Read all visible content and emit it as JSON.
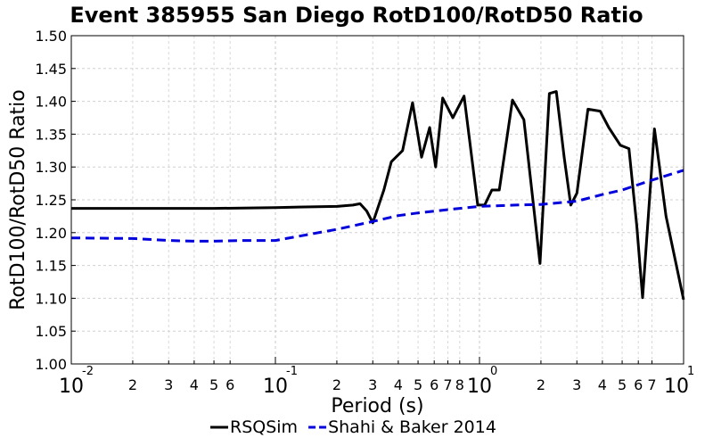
{
  "chart_data": {
    "type": "line",
    "title": "Event 385955 San Diego RotD100/RotD50 Ratio",
    "xlabel": "Period (s)",
    "ylabel": "RotD100/RotD50 Ratio",
    "xscale": "log",
    "xlim": [
      0.01,
      10
    ],
    "ylim": [
      1.0,
      1.5
    ],
    "yticks": [
      "1.00",
      "1.05",
      "1.10",
      "1.15",
      "1.20",
      "1.25",
      "1.30",
      "1.35",
      "1.40",
      "1.45",
      "1.50"
    ],
    "xticks_major": [
      {
        "value": 0.01,
        "base": "10",
        "exp": "-2"
      },
      {
        "value": 0.1,
        "base": "10",
        "exp": "-1"
      },
      {
        "value": 1,
        "base": "10",
        "exp": "0"
      },
      {
        "value": 10,
        "base": "10",
        "exp": "1"
      }
    ],
    "xticks_minor": [
      {
        "value": 0.02,
        "label": "2"
      },
      {
        "value": 0.03,
        "label": "3"
      },
      {
        "value": 0.04,
        "label": "4"
      },
      {
        "value": 0.05,
        "label": "5"
      },
      {
        "value": 0.06,
        "label": "6"
      },
      {
        "value": 0.2,
        "label": "2"
      },
      {
        "value": 0.3,
        "label": "3"
      },
      {
        "value": 0.4,
        "label": "4"
      },
      {
        "value": 0.5,
        "label": "5"
      },
      {
        "value": 0.6,
        "label": "6"
      },
      {
        "value": 0.7,
        "label": "7"
      },
      {
        "value": 0.8,
        "label": "8"
      },
      {
        "value": 2,
        "label": "2"
      },
      {
        "value": 3,
        "label": "3"
      },
      {
        "value": 4,
        "label": "4"
      },
      {
        "value": 5,
        "label": "5"
      },
      {
        "value": 6,
        "label": "6"
      },
      {
        "value": 7,
        "label": "7"
      }
    ],
    "grid": true,
    "legend_position": "bottom",
    "series": [
      {
        "name": "RSQSim",
        "color": "#000000",
        "style": "solid",
        "points": [
          [
            0.01,
            1.237
          ],
          [
            0.02,
            1.237
          ],
          [
            0.05,
            1.237
          ],
          [
            0.1,
            1.238
          ],
          [
            0.13,
            1.239
          ],
          [
            0.2,
            1.24
          ],
          [
            0.24,
            1.242
          ],
          [
            0.26,
            1.244
          ],
          [
            0.28,
            1.233
          ],
          [
            0.3,
            1.215
          ],
          [
            0.34,
            1.265
          ],
          [
            0.37,
            1.308
          ],
          [
            0.42,
            1.325
          ],
          [
            0.47,
            1.398
          ],
          [
            0.52,
            1.315
          ],
          [
            0.57,
            1.36
          ],
          [
            0.61,
            1.3
          ],
          [
            0.66,
            1.405
          ],
          [
            0.74,
            1.375
          ],
          [
            0.84,
            1.408
          ],
          [
            0.98,
            1.242
          ],
          [
            1.06,
            1.242
          ],
          [
            1.15,
            1.265
          ],
          [
            1.25,
            1.265
          ],
          [
            1.45,
            1.402
          ],
          [
            1.65,
            1.372
          ],
          [
            1.98,
            1.153
          ],
          [
            2.2,
            1.412
          ],
          [
            2.38,
            1.415
          ],
          [
            2.6,
            1.315
          ],
          [
            2.8,
            1.242
          ],
          [
            3.0,
            1.26
          ],
          [
            3.4,
            1.388
          ],
          [
            3.9,
            1.385
          ],
          [
            4.3,
            1.36
          ],
          [
            4.9,
            1.333
          ],
          [
            5.4,
            1.328
          ],
          [
            5.9,
            1.21
          ],
          [
            6.3,
            1.101
          ],
          [
            7.2,
            1.358
          ],
          [
            8.2,
            1.225
          ],
          [
            10.0,
            1.098
          ]
        ]
      },
      {
        "name": "Shahi & Baker 2014",
        "color": "#0000dd",
        "style": "dashed",
        "points": [
          [
            0.01,
            1.192
          ],
          [
            0.02,
            1.191
          ],
          [
            0.03,
            1.188
          ],
          [
            0.04,
            1.187
          ],
          [
            0.05,
            1.187
          ],
          [
            0.07,
            1.188
          ],
          [
            0.1,
            1.188
          ],
          [
            0.15,
            1.198
          ],
          [
            0.2,
            1.205
          ],
          [
            0.3,
            1.217
          ],
          [
            0.4,
            1.226
          ],
          [
            0.5,
            1.23
          ],
          [
            0.75,
            1.236
          ],
          [
            1.0,
            1.24
          ],
          [
            1.5,
            1.242
          ],
          [
            2.0,
            1.243
          ],
          [
            3.0,
            1.248
          ],
          [
            4.0,
            1.258
          ],
          [
            5.0,
            1.265
          ],
          [
            7.0,
            1.28
          ],
          [
            10.0,
            1.295
          ]
        ]
      }
    ]
  }
}
